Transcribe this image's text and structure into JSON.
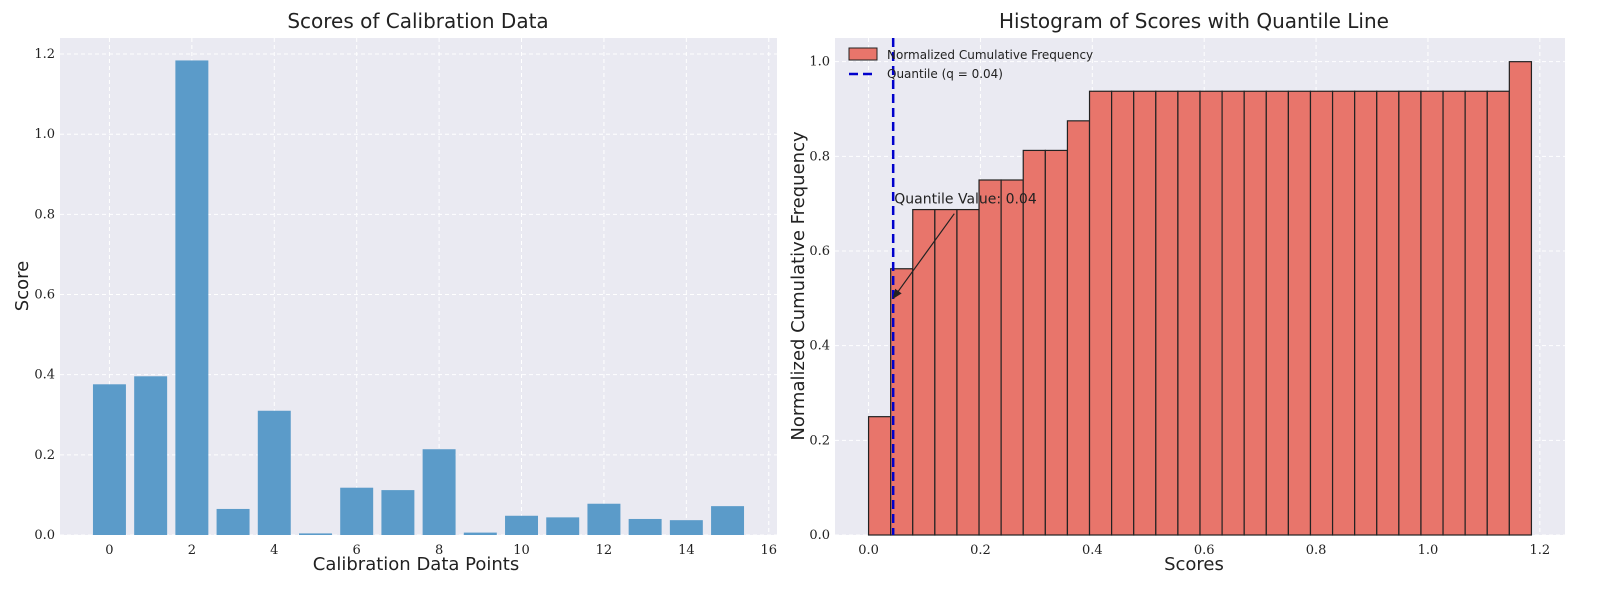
{
  "chart_data": [
    {
      "type": "bar",
      "title": "Scores of Calibration Data",
      "xlabel": "Calibration Data Points",
      "ylabel": "Score",
      "x": [
        0,
        1,
        2,
        3,
        4,
        5,
        6,
        7,
        8,
        9,
        10,
        11,
        12,
        13,
        14,
        15
      ],
      "values": [
        0.376,
        0.396,
        1.184,
        0.065,
        0.31,
        0.004,
        0.118,
        0.112,
        0.214,
        0.006,
        0.048,
        0.044,
        0.078,
        0.04,
        0.037,
        0.072
      ],
      "xlim": [
        -1.2,
        16.2
      ],
      "ylim": [
        0,
        1.24
      ],
      "xticks": [
        "0",
        "2",
        "4",
        "6",
        "8",
        "10",
        "12",
        "14",
        "16"
      ],
      "yticks": [
        "0.0",
        "0.2",
        "0.4",
        "0.6",
        "0.8",
        "1.0",
        "1.2"
      ],
      "grid": true,
      "colors": {
        "bar": "#5b9bc9",
        "background": "#eaeaf2",
        "grid": "#ffffff"
      }
    },
    {
      "type": "bar",
      "title": "Histogram of Scores with Quantile Line",
      "xlabel": "Scores",
      "ylabel": "Normalized Cumulative Frequency",
      "bin_edges": [
        0.0,
        0.0395,
        0.079,
        0.1185,
        0.158,
        0.1975,
        0.237,
        0.2765,
        0.316,
        0.3555,
        0.395,
        0.4345,
        0.474,
        0.5135,
        0.553,
        0.5925,
        0.632,
        0.6715,
        0.711,
        0.7505,
        0.79,
        0.8295,
        0.869,
        0.9085,
        0.948,
        0.9875,
        1.027,
        1.0665,
        1.106,
        1.1455,
        1.185
      ],
      "values": [
        0.25,
        0.5625,
        0.6875,
        0.6875,
        0.6875,
        0.75,
        0.75,
        0.8125,
        0.8125,
        0.875,
        0.9375,
        0.9375,
        0.9375,
        0.9375,
        0.9375,
        0.9375,
        0.9375,
        0.9375,
        0.9375,
        0.9375,
        0.9375,
        0.9375,
        0.9375,
        0.9375,
        0.9375,
        0.9375,
        0.9375,
        0.9375,
        0.9375,
        1.0
      ],
      "quantile": 0.044,
      "xlim": [
        -0.06,
        1.245
      ],
      "ylim": [
        0,
        1.05
      ],
      "xticks": [
        "0.0",
        "0.2",
        "0.4",
        "0.6",
        "0.8",
        "1.0",
        "1.2"
      ],
      "yticks": [
        "0.0",
        "0.2",
        "0.4",
        "0.6",
        "0.8",
        "1.0"
      ],
      "legend": {
        "placement": "upper-left",
        "entries": [
          "Normalized Cumulative Frequency",
          "Quantile (q = 0.04)"
        ]
      },
      "annotation": {
        "text": "Quantile Value: 0.04",
        "x": 0.044,
        "y": 0.5,
        "text_x": 0.046,
        "text_y": 0.7
      },
      "grid": true,
      "colors": {
        "bar": "#e8756b",
        "edge": "#222222",
        "quantile": "#0000cc",
        "background": "#eaeaf2",
        "grid": "#ffffff"
      }
    }
  ]
}
